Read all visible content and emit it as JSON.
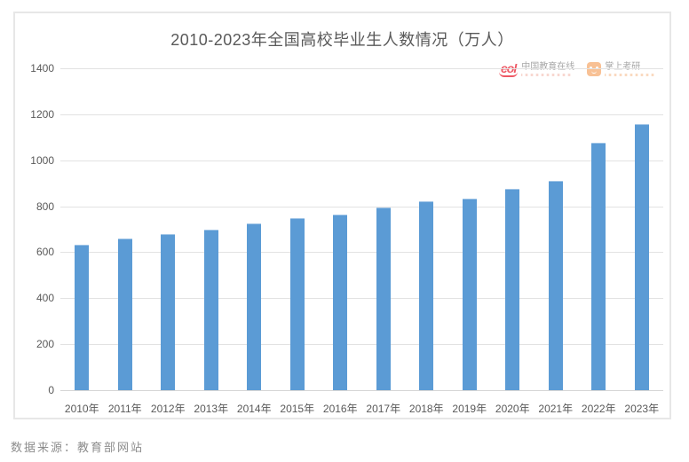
{
  "chart_data": {
    "type": "bar",
    "title": "2010-2023年全国高校毕业生人数情况（万人）",
    "categories": [
      "2010年",
      "2011年",
      "2012年",
      "2013年",
      "2014年",
      "2015年",
      "2016年",
      "2017年",
      "2018年",
      "2019年",
      "2020年",
      "2021年",
      "2022年",
      "2023年"
    ],
    "values": [
      631,
      660,
      680,
      699,
      727,
      749,
      765,
      795,
      820,
      834,
      874,
      909,
      1076,
      1158
    ],
    "xlabel": "",
    "ylabel": "",
    "ylim": [
      0,
      1400
    ],
    "yticks": [
      0,
      200,
      400,
      600,
      800,
      1000,
      1200,
      1400
    ],
    "grid": true,
    "legend_position": "none",
    "bar_color": "#5B9BD5",
    "gridline_color": "#E2E2E2",
    "axis_text_color": "#595959"
  },
  "watermarks": {
    "eol_logo_text": "eol",
    "eol_name": "中国教育在线",
    "kaoyan_name": "掌上考研"
  },
  "footer": {
    "source_note": "数据来源：教育部网站"
  }
}
